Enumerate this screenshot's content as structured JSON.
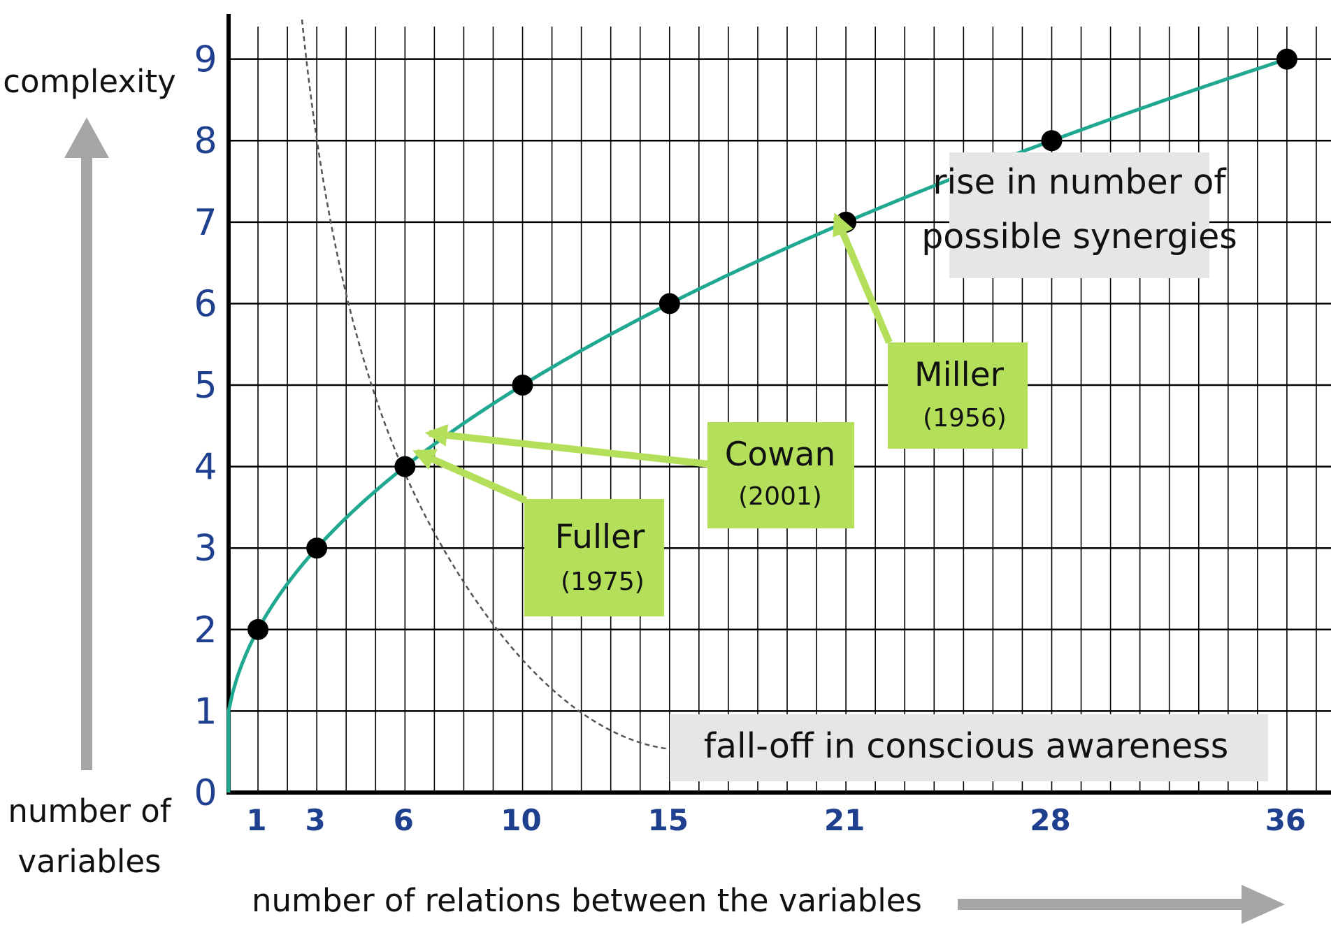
{
  "chart_data": {
    "type": "line",
    "ylabel_top": "complexity",
    "ylabel_bottom": "number of variables",
    "xlabel": "number of relations between the variables",
    "x_ticks": [
      1,
      3,
      6,
      10,
      15,
      21,
      28,
      36
    ],
    "y_ticks": [
      0,
      1,
      2,
      3,
      4,
      5,
      6,
      7,
      8,
      9
    ],
    "xlim": [
      0,
      37.5
    ],
    "ylim": [
      0,
      9.4
    ],
    "grid": true,
    "series": [
      {
        "name": "rise in number of possible synergies",
        "color": "#20a890",
        "points": [
          [
            1,
            2
          ],
          [
            3,
            3
          ],
          [
            6,
            4
          ],
          [
            10,
            5
          ],
          [
            15,
            6
          ],
          [
            21,
            7
          ],
          [
            28,
            8
          ],
          [
            36,
            9
          ]
        ]
      },
      {
        "name": "fall-off in conscious awareness",
        "color": "#555555",
        "style": "dashed"
      }
    ],
    "annotations": [
      {
        "name": "Miller",
        "year": "(1956)",
        "target": [
          21,
          7
        ]
      },
      {
        "name": "Cowan",
        "year": "(2001)",
        "target": [
          6,
          4
        ]
      },
      {
        "name": "Fuller",
        "year": "(1975)",
        "target": [
          6,
          4
        ]
      }
    ],
    "colors": {
      "annotation_box": "#b4df5a",
      "annotation_arrow": "#b4df5a",
      "label_box": "#e6e6e6",
      "axis_tick_text": "#1f3f8f",
      "big_arrow": "#a6a6a6"
    }
  }
}
